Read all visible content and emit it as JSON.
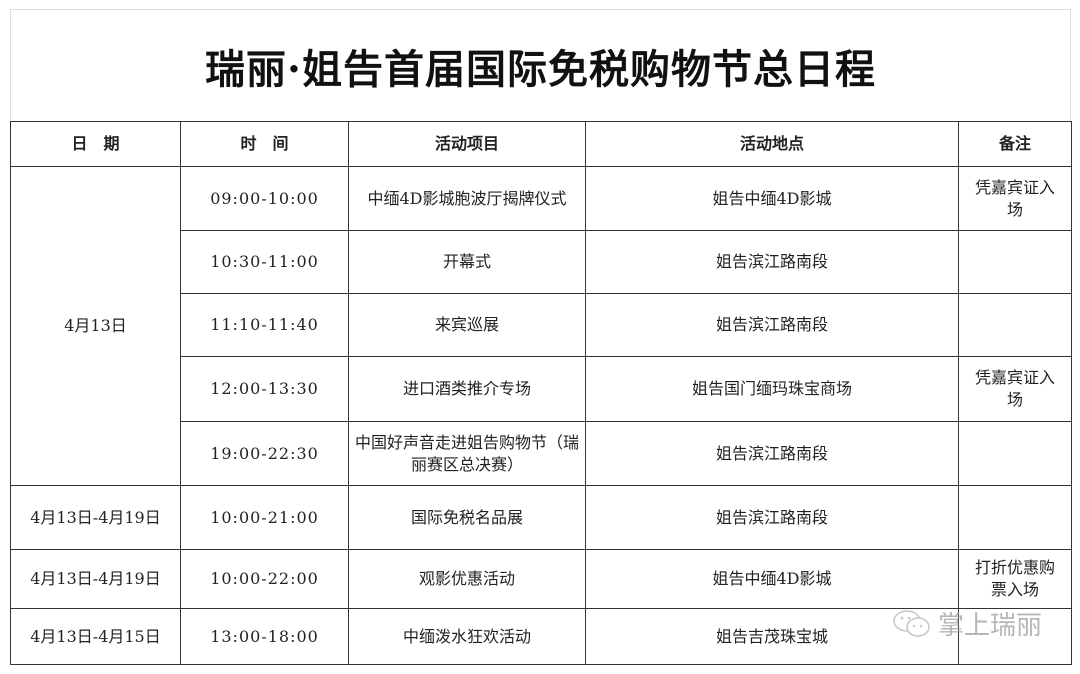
{
  "title": "瑞丽·姐告首届国际免税购物节总日程",
  "headers": [
    "日　期",
    "时　间",
    "活动项目",
    "活动地点",
    "备注"
  ],
  "rows": [
    {
      "date": "4月13日",
      "time": "09:00-10:00",
      "event": "中缅4D影城胞波厅揭牌仪式",
      "place": "姐告中缅4D影城",
      "note": "凭嘉宾证入场"
    },
    {
      "time": "10:30-11:00",
      "event": "开幕式",
      "place": "姐告滨江路南段",
      "note": ""
    },
    {
      "time": "11:10-11:40",
      "event": "来宾巡展",
      "place": "姐告滨江路南段",
      "note": ""
    },
    {
      "time": "12:00-13:30",
      "event": "进口酒类推介专场",
      "place": "姐告国门缅玛珠宝商场",
      "note": "凭嘉宾证入场"
    },
    {
      "time": "19:00-22:30",
      "event": "中国好声音走进姐告购物节（瑞丽赛区总决赛）",
      "place": "姐告滨江路南段",
      "note": ""
    },
    {
      "date": "4月13日-4月19日",
      "time": "10:00-21:00",
      "event": "国际免税名品展",
      "place": "姐告滨江路南段",
      "note": ""
    },
    {
      "date": "4月13日-4月19日",
      "time": "10:00-22:00",
      "event": "观影优惠活动",
      "place": "姐告中缅4D影城",
      "note": "打折优惠购票入场"
    },
    {
      "date": "4月13日-4月15日",
      "time": "13:00-18:00",
      "event": "中缅泼水狂欢活动",
      "place": "姐告吉茂珠宝城",
      "note": ""
    }
  ],
  "watermark": {
    "text": "掌上瑞丽",
    "icon": "wechat-icon"
  }
}
